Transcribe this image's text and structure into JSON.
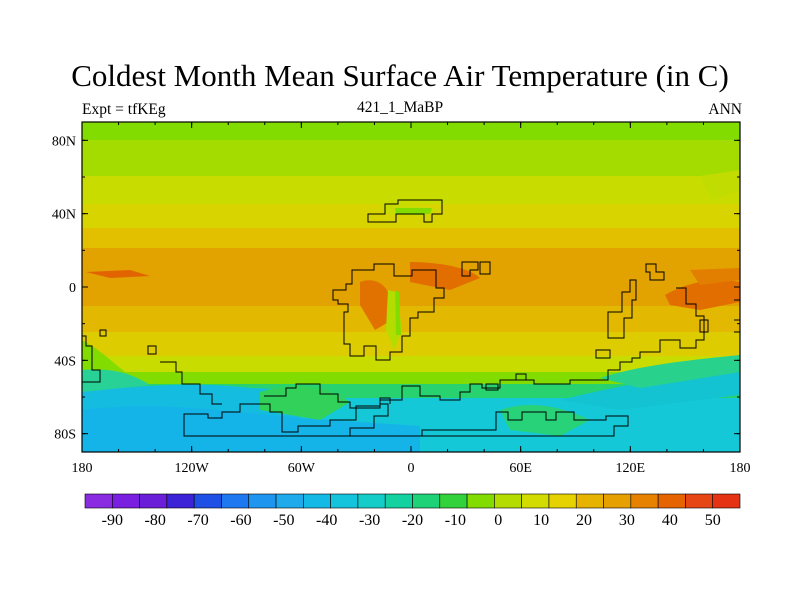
{
  "title": "Coldest Month Mean Surface Air Temperature (in C)",
  "subtitle_left": "Expt = tfKEg",
  "subtitle_center": "421_1_MaBP",
  "subtitle_right": "ANN",
  "chart_data": {
    "type": "heatmap",
    "projection": "equirectangular",
    "x_range": [
      -180,
      180
    ],
    "y_range": [
      -90,
      90
    ],
    "x_ticks": [
      {
        "value": -180,
        "label": "180"
      },
      {
        "value": -120,
        "label": "120W"
      },
      {
        "value": -60,
        "label": "60W"
      },
      {
        "value": 0,
        "label": "0"
      },
      {
        "value": 60,
        "label": "60E"
      },
      {
        "value": 120,
        "label": "120E"
      },
      {
        "value": 180,
        "label": "180"
      }
    ],
    "y_ticks": [
      {
        "value": 80,
        "label": "80N"
      },
      {
        "value": 40,
        "label": "40N"
      },
      {
        "value": 0,
        "label": "0"
      },
      {
        "value": -40,
        "label": "40S"
      },
      {
        "value": -80,
        "label": "80S"
      }
    ],
    "zonal_bands_degC": [
      {
        "lat": [
          80,
          90
        ],
        "temp": 5
      },
      {
        "lat": [
          60,
          80
        ],
        "temp": 10
      },
      {
        "lat": [
          45,
          60
        ],
        "temp": 15
      },
      {
        "lat": [
          30,
          45
        ],
        "temp": 20
      },
      {
        "lat": [
          20,
          30
        ],
        "temp": 25
      },
      {
        "lat": [
          -10,
          20
        ],
        "temp": 30
      },
      {
        "lat": [
          -25,
          -10
        ],
        "temp": 25
      },
      {
        "lat": [
          -35,
          -25
        ],
        "temp": 20
      },
      {
        "lat": [
          -45,
          -35
        ],
        "temp": 15
      },
      {
        "lat": [
          -55,
          -45
        ],
        "temp": 5
      },
      {
        "lat": [
          -65,
          -55
        ],
        "temp": -5
      },
      {
        "lat": [
          -90,
          -65
        ],
        "temp": -15
      }
    ],
    "colorbar": {
      "labels": [
        "-90",
        "-80",
        "-70",
        "-60",
        "-50",
        "-40",
        "-30",
        "-20",
        "-10",
        "0",
        "10",
        "20",
        "30",
        "40",
        "50"
      ],
      "colors": [
        "#8a2be2",
        "#7a1fe0",
        "#6a1ed8",
        "#3c23d8",
        "#1e50e6",
        "#1e78f0",
        "#1e96f0",
        "#1eaaeb",
        "#14b9e6",
        "#14c3dc",
        "#14cdc8",
        "#14d2a0",
        "#1ed278",
        "#32d23c",
        "#82dc00",
        "#b4dc00",
        "#d2dc00",
        "#e6d200",
        "#e6b400",
        "#e6a000",
        "#e68200",
        "#e66400",
        "#e64614",
        "#e63214"
      ]
    },
    "colors": {
      "land_outline": "#000000"
    }
  }
}
